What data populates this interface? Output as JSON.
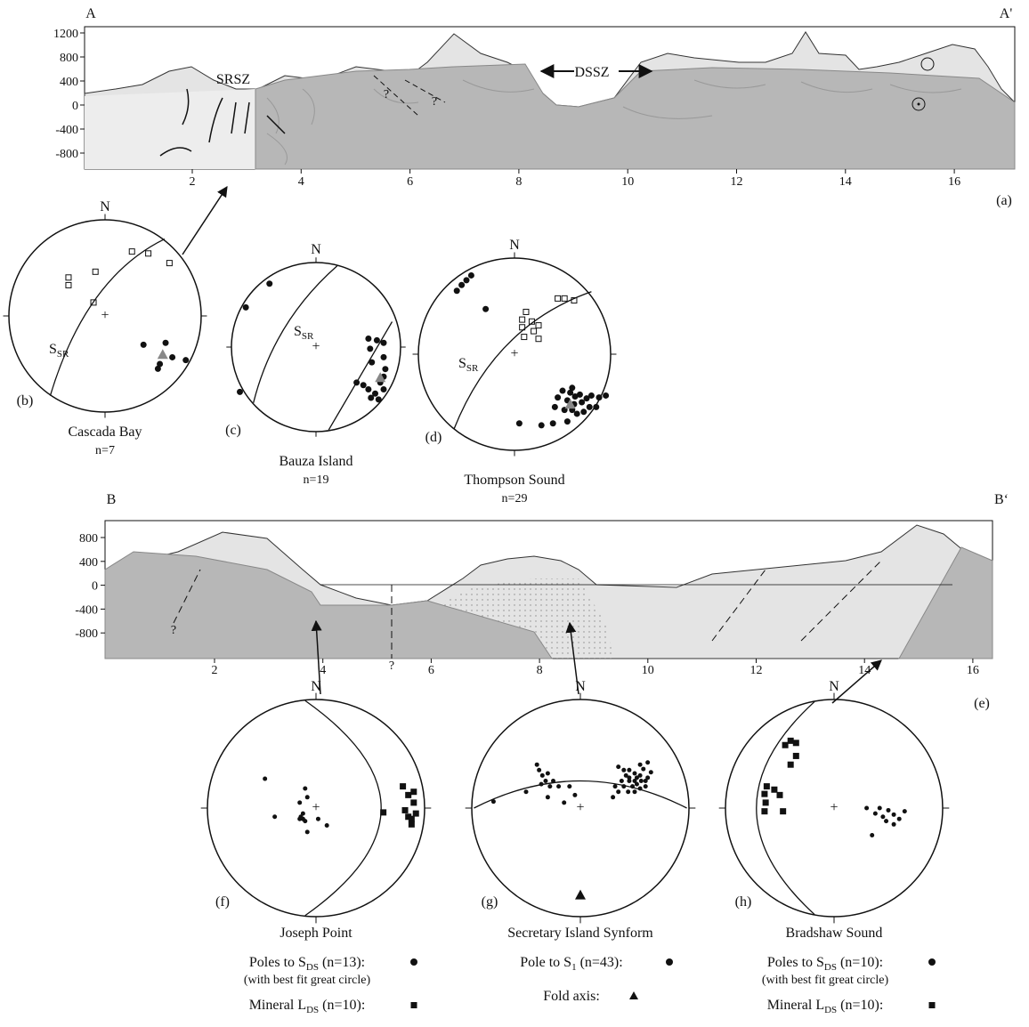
{
  "section_a": {
    "label_left": "A",
    "label_right": "A'",
    "elevation_ticks": [
      "1200",
      "800",
      "400",
      "0",
      "-400",
      "-800"
    ],
    "distance_ticks": [
      "2",
      "4",
      "6",
      "8",
      "10",
      "12",
      "14",
      "16"
    ],
    "zone_left": "SRSZ",
    "zone_right": "DSSZ",
    "query_1": "?",
    "query_2": "?",
    "panel": "(a)"
  },
  "stereonets_upper": [
    {
      "panel": "(b)",
      "north": "N",
      "name": "Cascada Bay",
      "count": "n=7",
      "plane_label": {
        "main": "S",
        "sub": "SR"
      }
    },
    {
      "panel": "(c)",
      "north": "N",
      "name": "Bauza Island",
      "count": "n=19",
      "plane_label": {
        "main": "S",
        "sub": "SR"
      }
    },
    {
      "panel": "(d)",
      "north": "N",
      "name": "Thompson Sound",
      "count": "n=29",
      "plane_label": {
        "main": "S",
        "sub": "SR"
      }
    }
  ],
  "section_b": {
    "label_left": "B",
    "label_right": "B‘",
    "elevation_ticks": [
      "800",
      "400",
      "0",
      "-400",
      "-800"
    ],
    "distance_ticks": [
      "2",
      "4",
      "6",
      "8",
      "10",
      "12",
      "14",
      "16"
    ],
    "query_1": "?",
    "query_2": "?",
    "panel": "(e)"
  },
  "stereonets_lower": [
    {
      "panel": "(f)",
      "north": "N",
      "name": "Joseph Point",
      "legend": [
        {
          "main": "Poles to S",
          "sub": "DS",
          "rest": " (n=13):",
          "note": "(with best fit great circle)"
        },
        {
          "main": "Mineral L",
          "sub": "DS",
          "rest": " (n=10):"
        }
      ]
    },
    {
      "panel": "(g)",
      "north": "N",
      "name": "Secretary Island Synform",
      "legend": [
        {
          "main": "Pole to S",
          "sub": "1",
          "rest": " (n=43):"
        },
        {
          "main": "Fold axis:"
        }
      ]
    },
    {
      "panel": "(h)",
      "north": "N",
      "name": "Bradshaw Sound",
      "legend": [
        {
          "main": "Poles to S",
          "sub": "DS",
          "rest": " (n=10):",
          "note": "(with best fit great circle)"
        },
        {
          "main": "Mineral L",
          "sub": "DS",
          "rest": " (n=10):"
        }
      ]
    }
  ]
}
